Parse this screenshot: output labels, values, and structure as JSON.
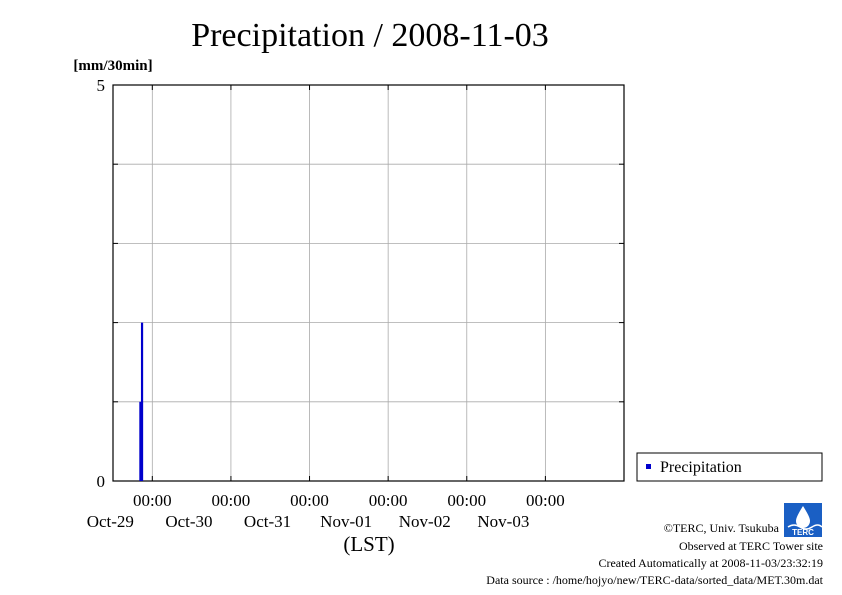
{
  "chart_data": {
    "type": "bar",
    "title": "Precipitation / 2008-11-03",
    "ylabel": "[mm/30min]",
    "xlabel": "(LST)",
    "ylim": [
      0,
      5
    ],
    "xlim": [
      "2008-10-28 12:00",
      "2008-11-04 00:00"
    ],
    "yticks": [
      0,
      1,
      2,
      3,
      4,
      5
    ],
    "ytick_labels": [
      "0",
      "5"
    ],
    "xticks": [
      {
        "time": "00:00",
        "date": "Oct-29"
      },
      {
        "time": "00:00",
        "date": "Oct-30"
      },
      {
        "time": "00:00",
        "date": "Oct-31"
      },
      {
        "time": "00:00",
        "date": "Nov-01"
      },
      {
        "time": "00:00",
        "date": "Nov-02"
      },
      {
        "time": "00:00",
        "date": "Nov-03"
      }
    ],
    "grid": true,
    "legend": "right",
    "series": [
      {
        "name": "Precipitation",
        "color": "#0000cc",
        "x": [
          "2008-10-29 00:00",
          "2008-10-29 00:30"
        ],
        "values": [
          1.0,
          2.0
        ]
      }
    ]
  },
  "credits": {
    "copyright": "©TERC, Univ. Tsukuba",
    "observed": "Observed at TERC Tower site",
    "created": "Created Automatically at 2008-11-03/23:32:19",
    "source": "Data source : /home/hojyo/new/TERC-data/sorted_data/MET.30m.dat",
    "logo_text": "TERC"
  }
}
